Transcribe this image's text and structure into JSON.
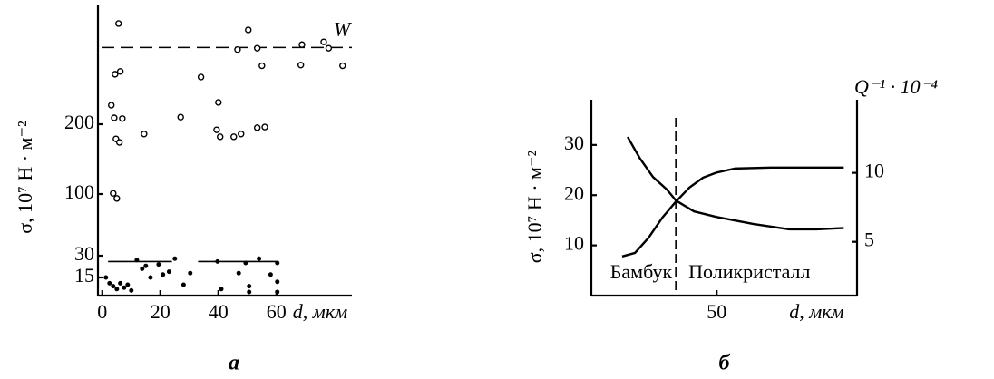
{
  "chart_data": [
    {
      "type": "scatter",
      "ylabel": "σ, 10⁷ H · м⁻²",
      "xlabel": "d, мкм",
      "caption": "а",
      "xlim": [
        -1.5,
        86
      ],
      "xticks": [
        0,
        20,
        40,
        60
      ],
      "ylim": [
        0,
        370
      ],
      "yticks": [
        15,
        30,
        100,
        200
      ],
      "series": [
        {
          "marker": "open",
          "x": [
            5.6,
            3.1,
            4.4,
            6.2,
            4.1,
            4.7,
            6.9,
            5.9,
            3.75,
            5,
            14.4,
            27,
            34,
            40,
            39.4,
            40.6,
            45.3,
            47.8,
            53.4,
            56,
            50.3,
            46.6,
            53.4,
            55,
            68.8,
            68.4,
            76.3,
            78,
            82.8
          ],
          "values": [
            343,
            227,
            271,
            275,
            209,
            179,
            208,
            174,
            101,
            95,
            186,
            210,
            267,
            231,
            192,
            182,
            182,
            186,
            195,
            196,
            334,
            306,
            308,
            283,
            313,
            284,
            317,
            308,
            283
          ]
        },
        {
          "marker": "filled",
          "x": [
            1.25,
            2.5,
            3.75,
            5,
            6.2,
            7.5,
            8.75,
            10,
            11.9,
            13.75,
            15,
            16.6,
            19.4,
            20.9,
            23,
            25,
            28,
            30.3,
            39.7,
            41,
            47,
            49.4,
            50.6,
            50.6,
            54,
            58,
            60.3,
            60.3,
            60.3
          ],
          "values": [
            15,
            11,
            9,
            7,
            11,
            8,
            10,
            6,
            27,
            21,
            23,
            15,
            24,
            17,
            19,
            28,
            10,
            18,
            26,
            7,
            18,
            25,
            9,
            5,
            28,
            17,
            25,
            12,
            5
          ]
        }
      ],
      "reference": {
        "label": "W",
        "value": 309
      },
      "segments": [
        {
          "x": [
            2,
            24
          ],
          "value": 26
        },
        {
          "x": [
            33,
            60
          ],
          "value": 26
        }
      ]
    },
    {
      "type": "line",
      "ylabel": "σ, 10⁷ H · м⁻²",
      "y2label": "Q⁻¹ · 10⁻⁴",
      "xlabel": "d, мкм",
      "caption": "б",
      "xlim": [
        0,
        106
      ],
      "xticks": [
        50
      ],
      "ylim": [
        0,
        39
      ],
      "yticks": [
        10,
        20,
        30
      ],
      "y2lim": [
        1.1,
        15.3
      ],
      "y2ticks": [
        5,
        10
      ],
      "series": [
        {
          "x": [
            12.3,
            17.4,
            22.8,
            28.3,
            33.7,
            39.1,
            44.6,
            50,
            57.2,
            71.7,
            100.7
          ],
          "values": [
            7.8,
            8.5,
            11.5,
            15.5,
            18.7,
            21.5,
            23.5,
            24.5,
            25.3,
            25.5,
            25.5
          ]
        },
        {
          "axis": "y2",
          "x": [
            14.5,
            19.2,
            24.6,
            30.1,
            33.7,
            41,
            50,
            64.5,
            79,
            89.9,
            100.7
          ],
          "values": [
            12.6,
            11.1,
            9.7,
            8.8,
            8.0,
            7.2,
            6.8,
            6.3,
            5.9,
            5.9,
            6.0
          ]
        }
      ],
      "vline": 33.7,
      "annotations": [
        "Бамбук",
        "Поликристалл"
      ]
    }
  ]
}
